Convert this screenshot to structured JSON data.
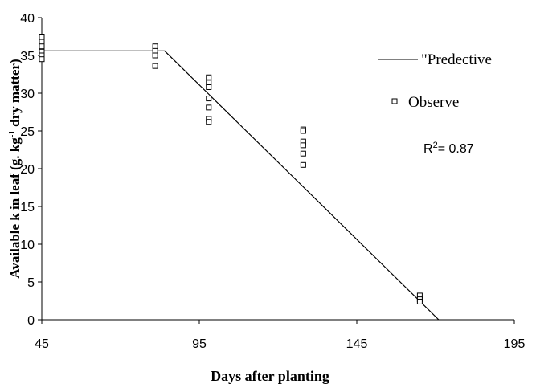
{
  "chart_data": {
    "type": "scatter",
    "xlabel": "Days after planting",
    "ylabel_parts": [
      "Available k in leaf (g. kg",
      "-1",
      " dry matter)"
    ],
    "xlim": [
      45,
      195
    ],
    "ylim": [
      0,
      40
    ],
    "x_ticks": [
      45,
      95,
      145,
      195
    ],
    "y_ticks": [
      0,
      5,
      10,
      15,
      20,
      25,
      30,
      35,
      40
    ],
    "grid": false,
    "legend_position": "top-right",
    "series": [
      {
        "name": "\"Predective",
        "kind": "line",
        "color": "#000000",
        "points": [
          [
            45,
            35.6
          ],
          [
            84,
            35.6
          ],
          [
            171,
            0
          ]
        ]
      },
      {
        "name": "Observe",
        "kind": "scatter",
        "marker": "open-square",
        "color": "#000000",
        "points": [
          [
            45,
            37.5
          ],
          [
            45,
            36.8
          ],
          [
            45,
            36.2
          ],
          [
            45,
            35.5
          ],
          [
            45,
            35.0
          ],
          [
            45,
            34.5
          ],
          [
            81,
            36.2
          ],
          [
            81,
            35.6
          ],
          [
            81,
            35.0
          ],
          [
            81,
            33.6
          ],
          [
            98,
            32.1
          ],
          [
            98,
            31.4
          ],
          [
            98,
            30.8
          ],
          [
            98,
            29.3
          ],
          [
            98,
            28.1
          ],
          [
            98,
            26.6
          ],
          [
            98,
            26.2
          ],
          [
            128,
            25.2
          ],
          [
            128,
            25.0
          ],
          [
            128,
            23.6
          ],
          [
            128,
            23.1
          ],
          [
            128,
            22.0
          ],
          [
            128,
            20.5
          ],
          [
            165,
            3.2
          ],
          [
            165,
            2.7
          ],
          [
            165,
            2.4
          ]
        ]
      }
    ],
    "annotation": {
      "text_main": "R",
      "text_sup": "2",
      "text_rest": "= 0.87"
    }
  }
}
